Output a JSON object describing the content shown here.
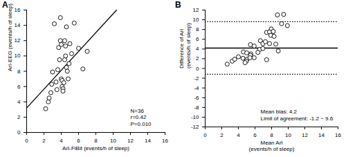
{
  "chart_data": [
    {
      "type": "scatter",
      "title": "A",
      "x_label": "ArI-FiBit (events/h of sleep)",
      "y_label": "ArI-EEG (events/h of sleep)",
      "x": [
        2.2,
        2.5,
        2.6,
        2.8,
        2.9,
        3.0,
        3.2,
        3.4,
        3.5,
        3.6,
        3.7,
        3.8,
        3.9,
        3.9,
        4.0,
        4.0,
        4.1,
        4.1,
        4.2,
        4.2,
        4.3,
        4.4,
        4.4,
        4.5,
        4.5,
        4.6,
        4.6,
        4.7,
        4.8,
        4.9,
        5.0,
        5.2,
        5.5,
        6.0,
        6.5,
        7.0
      ],
      "values": [
        3.1,
        4.0,
        4.5,
        5.2,
        6.3,
        7.9,
        14.2,
        6.6,
        5.6,
        8.2,
        11.1,
        9.5,
        15.0,
        12.0,
        11.5,
        7.0,
        6.8,
        6.0,
        5.7,
        5.4,
        6.5,
        12.0,
        9.5,
        11.3,
        10.0,
        13.8,
        8.5,
        8.0,
        7.0,
        9.0,
        11.6,
        10.3,
        14.3,
        11.0,
        8.3,
        10.6
      ],
      "xlim": [
        0,
        16
      ],
      "ylim": [
        0,
        16
      ],
      "xticks": [
        0,
        2,
        4,
        6,
        8,
        10,
        12,
        14,
        16
      ],
      "yticks": [
        0,
        2,
        4,
        6,
        8,
        10,
        12,
        14,
        16
      ],
      "marker": "circle",
      "color": "#000000",
      "fit_line": {
        "x": [
          0,
          10.4
        ],
        "y": [
          3.2,
          16
        ]
      },
      "annotations": [
        "N=36",
        "r=0.42",
        "P=0.010"
      ]
    },
    {
      "type": "scatter",
      "title": "B",
      "x_label": "Mean ArI\n(events/h of sleep)",
      "y_label": "Difference of ArI\n(events/h of sleep)",
      "x": [
        2.65,
        3.25,
        3.55,
        4.0,
        4.6,
        5.45,
        8.7,
        5.0,
        4.55,
        5.9,
        7.4,
        6.65,
        9.45,
        7.95,
        7.75,
        5.5,
        5.45,
        5.05,
        4.95,
        4.8,
        5.4,
        8.2,
        6.95,
        7.9,
        7.25,
        9.2,
        6.55,
        6.35,
        5.9,
        6.95,
        8.3,
        7.75,
        9.9,
        8.5,
        7.4,
        8.8
      ],
      "values": [
        0.9,
        1.5,
        1.9,
        2.4,
        3.4,
        4.9,
        11.0,
        3.2,
        2.1,
        4.6,
        7.4,
        5.7,
        11.1,
        8.1,
        7.5,
        3.0,
        2.7,
        1.9,
        1.5,
        1.2,
        2.2,
        7.6,
        5.1,
        6.8,
        5.5,
        9.2,
        3.9,
        3.3,
        2.2,
        4.1,
        6.6,
        5.1,
        8.8,
        5.0,
        1.8,
        3.6
      ],
      "xlim": [
        0,
        16
      ],
      "ylim": [
        -12,
        12
      ],
      "xticks": [
        0,
        2,
        4,
        6,
        8,
        10,
        12,
        14,
        16
      ],
      "yticks": [
        -12,
        -10,
        -8,
        -6,
        -4,
        -2,
        0,
        2,
        4,
        6,
        8,
        10,
        12
      ],
      "marker": "circle",
      "color": "#000000",
      "mean_bias": 4.2,
      "limits_of_agreement": [
        -1.2,
        9.6
      ],
      "annotations": [
        "Mean bias: 4.2",
        "Limit of agreement: -1.2 ~ 9.6"
      ]
    }
  ]
}
